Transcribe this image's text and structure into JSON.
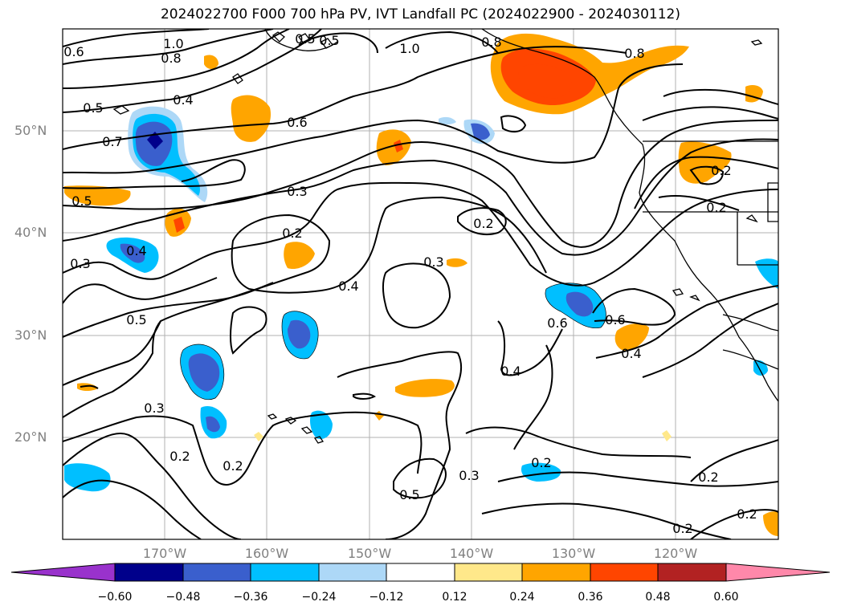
{
  "title": "2024022700 F000 700 hPa PV, IVT Landfall PC (2024022900 - 2024030112)",
  "lat_labels": [
    "50°N",
    "40°N",
    "30°N",
    "20°N"
  ],
  "lon_labels": [
    "170°W",
    "160°W",
    "150°W",
    "140°W",
    "130°W",
    "120°W"
  ],
  "colorbar": {
    "ticks": [
      "−0.60",
      "−0.48",
      "−0.36",
      "−0.24",
      "−0.12",
      "0.12",
      "0.24",
      "0.36",
      "0.48",
      "0.60"
    ],
    "colors": [
      "#9932cc",
      "#00008b",
      "#3a5fcd",
      "#00bfff",
      "#add8f7",
      "#ffffff",
      "#ffe88a",
      "#ffa500",
      "#ff4500",
      "#b22222",
      "#ff88aa"
    ]
  },
  "contour_labels": [
    "1.0",
    "0.8",
    "0.6",
    "0.5",
    "0.5",
    "0.4",
    "0.5",
    "0.7",
    "0.5",
    "0.6",
    "0.3",
    "0.2",
    "0.4",
    "0.3",
    "0.2",
    "0.3",
    "0.4",
    "0.5",
    "0.6",
    "0.4",
    "0.4",
    "0.3",
    "0.2",
    "0.2",
    "0.2",
    "0.5",
    "0.3",
    "0.2",
    "0.2",
    "0.2",
    "0.2",
    "0.2",
    "0.8",
    "0.8",
    "1.0",
    "0.6"
  ]
}
